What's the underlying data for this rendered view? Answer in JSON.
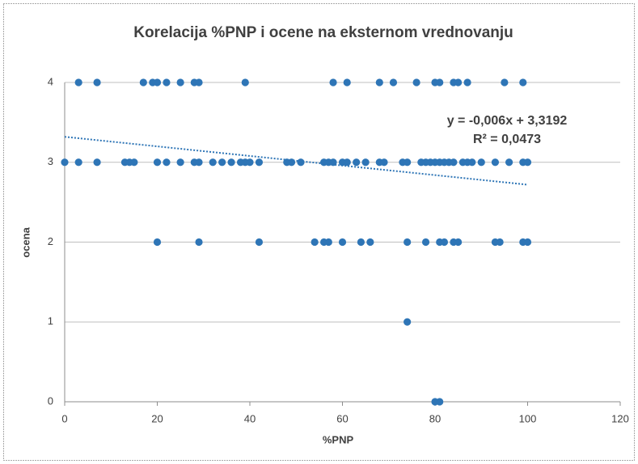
{
  "chart_data": {
    "type": "scatter",
    "title": "Korelacija %PNP i ocene na eksternom vrednovanju",
    "xlabel": "%PNP",
    "ylabel": "ocena",
    "color": "#2e75b6",
    "x": [
      3,
      7,
      17,
      19,
      20,
      22,
      25,
      28,
      29,
      39,
      58,
      61,
      68,
      71,
      76,
      80,
      81,
      84,
      85,
      87,
      95,
      99,
      0,
      3,
      7,
      13,
      14,
      15,
      20,
      22,
      25,
      28,
      29,
      32,
      34,
      36,
      38,
      39,
      40,
      42,
      48,
      49,
      51,
      56,
      57,
      58,
      60,
      61,
      63,
      65,
      68,
      69,
      73,
      74,
      77,
      78,
      79,
      80,
      81,
      82,
      83,
      84,
      86,
      87,
      88,
      90,
      93,
      96,
      99,
      100,
      20,
      29,
      42,
      54,
      56,
      57,
      60,
      64,
      66,
      74,
      78,
      81,
      82,
      84,
      85,
      93,
      94,
      99,
      100,
      74,
      80,
      81
    ],
    "y": [
      4,
      4,
      4,
      4,
      4,
      4,
      4,
      4,
      4,
      4,
      4,
      4,
      4,
      4,
      4,
      4,
      4,
      4,
      4,
      4,
      4,
      4,
      3,
      3,
      3,
      3,
      3,
      3,
      3,
      3,
      3,
      3,
      3,
      3,
      3,
      3,
      3,
      3,
      3,
      3,
      3,
      3,
      3,
      3,
      3,
      3,
      3,
      3,
      3,
      3,
      3,
      3,
      3,
      3,
      3,
      3,
      3,
      3,
      3,
      3,
      3,
      3,
      3,
      3,
      3,
      3,
      3,
      3,
      3,
      3,
      2,
      2,
      2,
      2,
      2,
      2,
      2,
      2,
      2,
      2,
      2,
      2,
      2,
      2,
      2,
      2,
      2,
      2,
      2,
      1,
      0,
      0
    ],
    "trendline": {
      "slope": -0.006,
      "intercept": 3.3192,
      "label": "y = -0,006x + 3,3192",
      "r2": 0.0473,
      "r2_label": "R² = 0,0473"
    },
    "xlim": [
      0,
      120
    ],
    "xticks": [
      0,
      20,
      40,
      60,
      80,
      100,
      120
    ],
    "ylim": [
      0,
      4
    ],
    "yticks": [
      0,
      1,
      2,
      3,
      4
    ],
    "grid": true
  }
}
